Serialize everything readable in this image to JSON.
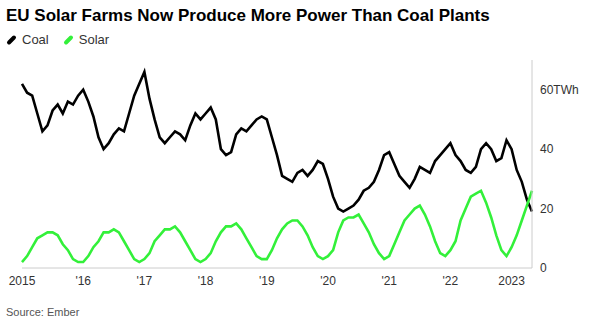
{
  "chart_data": {
    "type": "line",
    "title": "EU Solar Farms Now Produce More Power Than Coal Plants",
    "source": "Source: Ember",
    "legend": "top left",
    "categories": [
      "2015",
      null,
      null,
      null,
      null,
      null,
      null,
      null,
      null,
      null,
      null,
      null,
      "'16",
      null,
      null,
      null,
      null,
      null,
      null,
      null,
      null,
      null,
      null,
      null,
      "'17",
      null,
      null,
      null,
      null,
      null,
      null,
      null,
      null,
      null,
      null,
      null,
      "'18",
      null,
      null,
      null,
      null,
      null,
      null,
      null,
      null,
      null,
      null,
      null,
      "'19",
      null,
      null,
      null,
      null,
      null,
      null,
      null,
      null,
      null,
      null,
      null,
      "'20",
      null,
      null,
      null,
      null,
      null,
      null,
      null,
      null,
      null,
      null,
      null,
      "'21",
      null,
      null,
      null,
      null,
      null,
      null,
      null,
      null,
      null,
      null,
      null,
      "'22",
      null,
      null,
      null,
      null,
      null,
      null,
      null,
      null,
      null,
      null,
      null,
      "2023",
      null,
      null,
      null,
      null
    ],
    "series": [
      {
        "name": "Coal",
        "color": "#000000",
        "values": [
          62,
          59,
          58,
          52,
          46,
          48,
          53,
          55,
          52,
          56,
          55,
          58,
          60,
          56,
          51,
          44,
          40,
          42,
          45,
          47,
          46,
          52,
          58,
          62,
          66,
          57,
          50,
          44,
          42,
          44,
          46,
          45,
          43,
          48,
          52,
          50,
          52,
          54,
          50,
          40,
          38,
          39,
          45,
          47,
          46,
          48,
          50,
          51,
          50,
          44,
          38,
          31,
          30,
          29,
          32,
          33,
          31,
          33,
          36,
          35,
          30,
          24,
          20,
          19,
          20,
          21,
          23,
          26,
          27,
          29,
          33,
          38,
          39,
          35,
          31,
          29,
          27,
          30,
          34,
          33,
          32,
          36,
          38,
          40,
          42,
          38,
          36,
          33,
          32,
          34,
          40,
          42,
          40,
          36,
          37,
          43,
          40,
          33,
          29,
          23,
          19
        ]
      },
      {
        "name": "Solar",
        "color": "#33f03a",
        "values": [
          2,
          4,
          7,
          10,
          11,
          12,
          12,
          11,
          8,
          6,
          3,
          2,
          2,
          4,
          7,
          9,
          12,
          12,
          13,
          12,
          9,
          6,
          3,
          2,
          3,
          5,
          9,
          11,
          13,
          13,
          14,
          12,
          9,
          6,
          3,
          2,
          3,
          5,
          9,
          12,
          14,
          14,
          15,
          13,
          10,
          7,
          4,
          3,
          3,
          6,
          10,
          13,
          15,
          16,
          16,
          14,
          11,
          7,
          4,
          3,
          4,
          6,
          12,
          16,
          17,
          17,
          18,
          15,
          12,
          8,
          5,
          3,
          4,
          8,
          12,
          16,
          18,
          20,
          21,
          18,
          14,
          9,
          5,
          4,
          6,
          9,
          16,
          20,
          24,
          25,
          26,
          22,
          17,
          11,
          6,
          4,
          7,
          11,
          16,
          21,
          26
        ]
      }
    ],
    "ylim": [
      0,
      70
    ],
    "yticks": [
      0,
      20,
      40,
      {
        "value": 60,
        "label": "60TWh"
      }
    ]
  }
}
